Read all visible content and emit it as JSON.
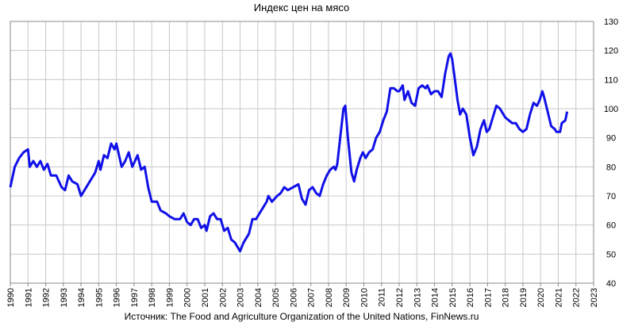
{
  "chart_data": {
    "type": "line",
    "title": "Индекс цен на мясо",
    "source": "Источник: The Food and Agriculture Organization of the United Nations, FinNews.ru",
    "x": [
      1990.0,
      1990.25,
      1990.5,
      1990.75,
      1991.0,
      1991.1,
      1991.3,
      1991.5,
      1991.7,
      1991.9,
      1992.1,
      1992.3,
      1992.6,
      1992.9,
      1993.1,
      1993.3,
      1993.5,
      1993.8,
      1994.0,
      1994.2,
      1994.5,
      1994.8,
      1995.0,
      1995.1,
      1995.3,
      1995.5,
      1995.7,
      1995.9,
      1996.0,
      1996.3,
      1996.5,
      1996.7,
      1996.9,
      1997.2,
      1997.4,
      1997.6,
      1997.8,
      1998.0,
      1998.3,
      1998.5,
      1998.8,
      1999.0,
      1999.3,
      1999.6,
      1999.8,
      2000.0,
      2000.2,
      2000.4,
      2000.6,
      2000.8,
      2001.0,
      2001.1,
      2001.3,
      2001.5,
      2001.7,
      2001.9,
      2002.1,
      2002.3,
      2002.5,
      2002.7,
      2002.9,
      2003.0,
      2003.2,
      2003.5,
      2003.7,
      2003.9,
      2004.1,
      2004.3,
      2004.5,
      2004.6,
      2004.8,
      2005.1,
      2005.3,
      2005.5,
      2005.7,
      2006.0,
      2006.3,
      2006.5,
      2006.7,
      2006.9,
      2007.1,
      2007.3,
      2007.5,
      2007.7,
      2007.9,
      2008.1,
      2008.3,
      2008.4,
      2008.5,
      2008.7,
      2008.85,
      2008.95,
      2009.1,
      2009.3,
      2009.45,
      2009.6,
      2009.8,
      2009.95,
      2010.1,
      2010.3,
      2010.5,
      2010.7,
      2010.9,
      2011.1,
      2011.3,
      2011.5,
      2011.7,
      2011.9,
      2012.0,
      2012.2,
      2012.3,
      2012.5,
      2012.7,
      2012.9,
      2013.1,
      2013.3,
      2013.5,
      2013.6,
      2013.8,
      2014.0,
      2014.2,
      2014.4,
      2014.6,
      2014.8,
      2014.9,
      2015.0,
      2015.15,
      2015.3,
      2015.45,
      2015.6,
      2015.8,
      2016.0,
      2016.2,
      2016.4,
      2016.6,
      2016.8,
      2016.95,
      2017.1,
      2017.3,
      2017.5,
      2017.7,
      2017.9,
      2018.0,
      2018.2,
      2018.4,
      2018.6,
      2018.8,
      2019.0,
      2019.2,
      2019.4,
      2019.6,
      2019.8,
      2019.95,
      2020.1,
      2020.2,
      2020.4,
      2020.6,
      2020.8,
      2020.9,
      2021.1,
      2021.2,
      2021.4,
      2021.5
    ],
    "series": [
      {
        "name": "Индекс цен на мясо",
        "color": "#1010e8",
        "values": [
          73,
          80,
          83,
          85,
          86,
          80,
          82,
          80,
          82,
          79,
          81,
          77,
          77,
          73,
          72,
          77,
          75,
          74,
          70,
          72,
          75,
          78,
          82,
          79,
          84,
          83,
          88,
          86,
          88,
          80,
          82,
          85,
          80,
          84,
          79,
          80,
          73,
          68,
          68,
          65,
          64,
          63,
          62,
          62,
          64,
          61,
          60,
          62,
          62,
          59,
          60,
          58,
          63,
          64,
          62,
          62,
          58,
          59,
          55,
          54,
          52,
          51,
          54,
          57,
          62,
          62,
          64,
          66,
          68,
          70,
          68,
          70,
          71,
          73,
          72,
          73,
          74,
          69,
          67,
          72,
          73,
          71,
          70,
          74,
          77,
          79,
          80,
          79,
          81,
          92,
          100,
          101,
          90,
          78,
          75,
          79,
          83,
          85,
          83,
          85,
          86,
          90,
          92,
          96,
          99,
          107,
          107,
          106,
          106,
          108,
          103,
          106,
          102,
          101,
          107,
          108,
          107,
          108,
          105,
          106,
          106,
          104,
          112,
          118,
          119,
          117,
          110,
          103,
          98,
          100,
          98,
          90,
          84,
          87,
          93,
          96,
          92,
          93,
          97,
          101,
          100,
          98,
          97,
          96,
          95,
          95,
          93,
          92,
          93,
          98,
          102,
          101,
          103,
          106,
          104,
          99,
          94,
          93,
          92,
          92,
          95,
          96,
          99
        ]
      }
    ],
    "xlim": [
      1990,
      2023
    ],
    "xticks": [
      1990,
      1991,
      1992,
      1993,
      1994,
      1995,
      1996,
      1997,
      1998,
      1999,
      2000,
      2001,
      2002,
      2003,
      2004,
      2005,
      2006,
      2007,
      2008,
      2009,
      2010,
      2011,
      2012,
      2013,
      2014,
      2015,
      2016,
      2017,
      2018,
      2019,
      2020,
      2021,
      2022,
      2023
    ],
    "ylim": [
      40,
      130
    ],
    "yticks": [
      40,
      50,
      60,
      70,
      80,
      90,
      100,
      110,
      120,
      130
    ],
    "grid": true
  }
}
